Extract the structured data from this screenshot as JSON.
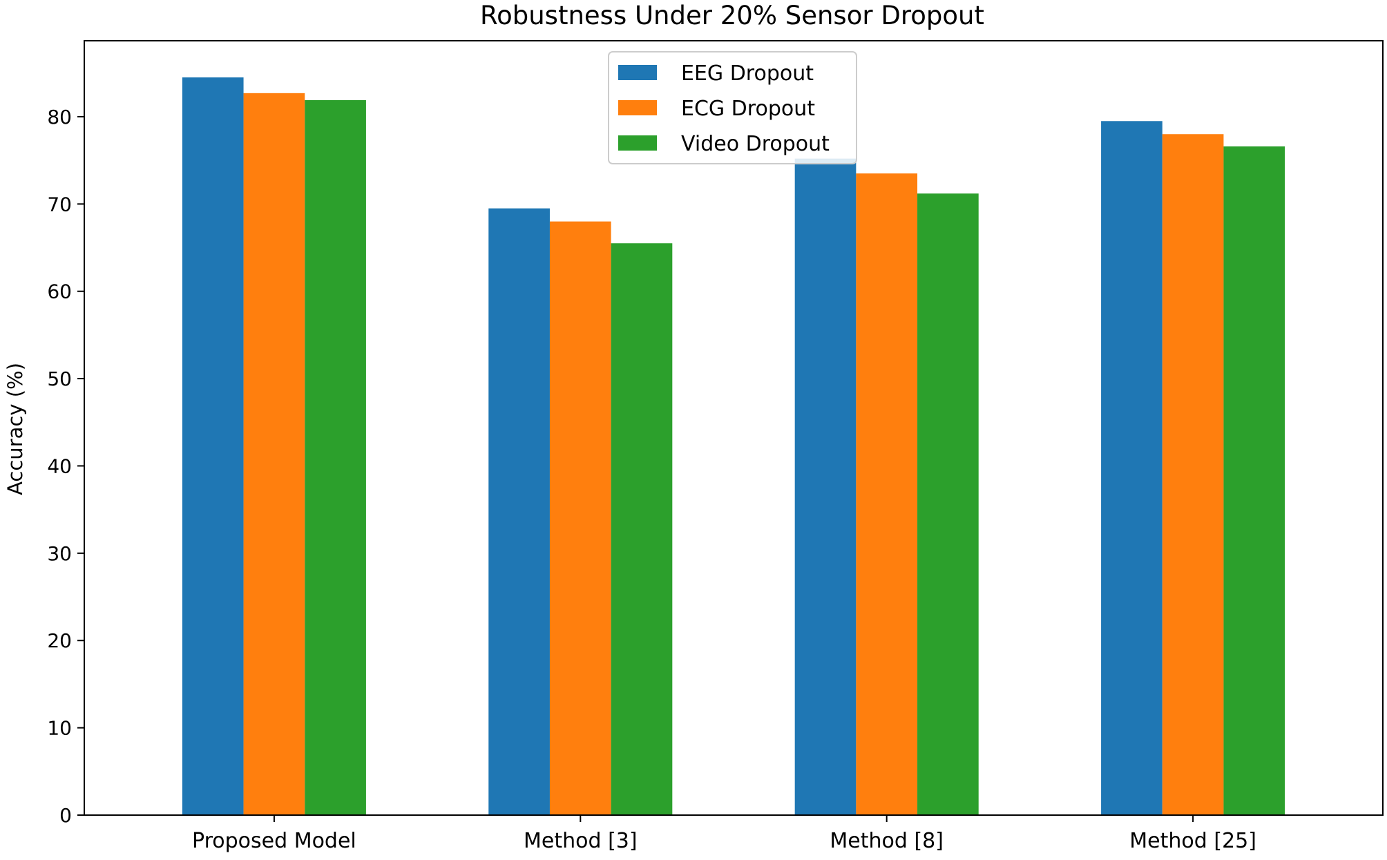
{
  "chart_data": {
    "type": "bar",
    "title": "Robustness Under 20% Sensor Dropout",
    "xlabel": "",
    "ylabel": "Accuracy (%)",
    "categories": [
      "Proposed Model",
      "Method [3]",
      "Method [8]",
      "Method [25]"
    ],
    "series": [
      {
        "name": "EEG Dropout",
        "color": "#1f77b4",
        "values": [
          84.5,
          69.5,
          75.2,
          79.5
        ]
      },
      {
        "name": "ECG Dropout",
        "color": "#ff7f0e",
        "values": [
          82.7,
          68.0,
          73.5,
          78.0
        ]
      },
      {
        "name": "Video Dropout",
        "color": "#2ca02c",
        "values": [
          81.9,
          65.5,
          71.2,
          76.6
        ]
      }
    ],
    "ylim": [
      0,
      88.7
    ],
    "yticks": [
      0,
      10,
      20,
      30,
      40,
      50,
      60,
      70,
      80
    ],
    "grid": false,
    "legend_position": "top-center"
  }
}
